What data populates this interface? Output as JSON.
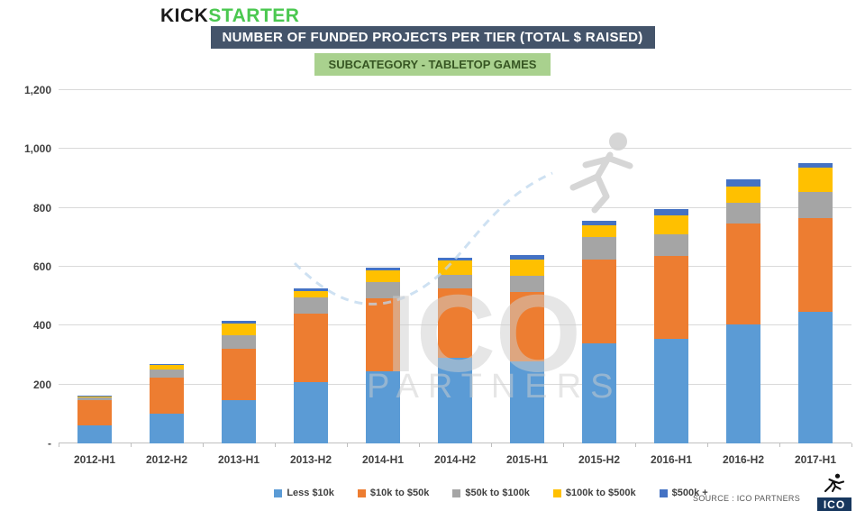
{
  "logo": {
    "kick": "KICK",
    "starter": "STARTER"
  },
  "title": "NUMBER OF FUNDED PROJECTS PER TIER (TOTAL $ RAISED)",
  "subtitle": "SUBCATEGORY - TABLETOP GAMES",
  "source": "SOURCE : ICO PARTNERS",
  "ico_logo_text": "ICO",
  "watermark": {
    "line1": "ICO",
    "line2": "PARTNERS"
  },
  "colors": {
    "logo_kick": "#1a1a1a",
    "logo_starter": "#4bc850",
    "title_bg": "#44546A",
    "title_text": "#ffffff",
    "subtitle_bg": "#A9D18E",
    "subtitle_text": "#375623",
    "axis_text": "#404040",
    "ico_box_bg": "#17375E"
  },
  "chart_data": {
    "type": "bar",
    "stacked": true,
    "title": "NUMBER OF FUNDED PROJECTS PER TIER (TOTAL $ RAISED)",
    "subtitle": "SUBCATEGORY - TABLETOP GAMES",
    "xlabel": "",
    "ylabel": "",
    "ylim": [
      0,
      1200
    ],
    "ytick_step": 200,
    "ytick_labels": [
      "-",
      "200",
      "400",
      "600",
      "800",
      "1,000",
      "1,200"
    ],
    "grid": true,
    "legend_position": "bottom",
    "categories": [
      "2012-H1",
      "2012-H2",
      "2013-H1",
      "2013-H2",
      "2014-H1",
      "2014-H2",
      "2015-H1",
      "2015-H2",
      "2016-H1",
      "2016-H2",
      "2017-H1"
    ],
    "series": [
      {
        "name": "Less $10k",
        "color": "#5B9BD5",
        "values": [
          62,
          101,
          147,
          208,
          245,
          291,
          279,
          340,
          355,
          404,
          447
        ]
      },
      {
        "name": "$10k to $50k",
        "color": "#ED7D31",
        "values": [
          84,
          122,
          174,
          233,
          247,
          236,
          236,
          285,
          282,
          343,
          318
        ]
      },
      {
        "name": "$50k to $100k",
        "color": "#A5A5A5",
        "values": [
          10,
          28,
          46,
          55,
          55,
          46,
          55,
          76,
          73,
          70,
          89
        ]
      },
      {
        "name": "$100k to $500k",
        "color": "#FFC000",
        "values": [
          3,
          15,
          40,
          21,
          40,
          49,
          55,
          40,
          65,
          56,
          83
        ]
      },
      {
        "name": "$500k +",
        "color": "#4472C4",
        "values": [
          2,
          3,
          9,
          9,
          10,
          9,
          15,
          15,
          21,
          24,
          15
        ]
      }
    ],
    "totals": [
      161,
      269,
      416,
      526,
      597,
      631,
      640,
      756,
      796,
      897,
      952
    ]
  }
}
